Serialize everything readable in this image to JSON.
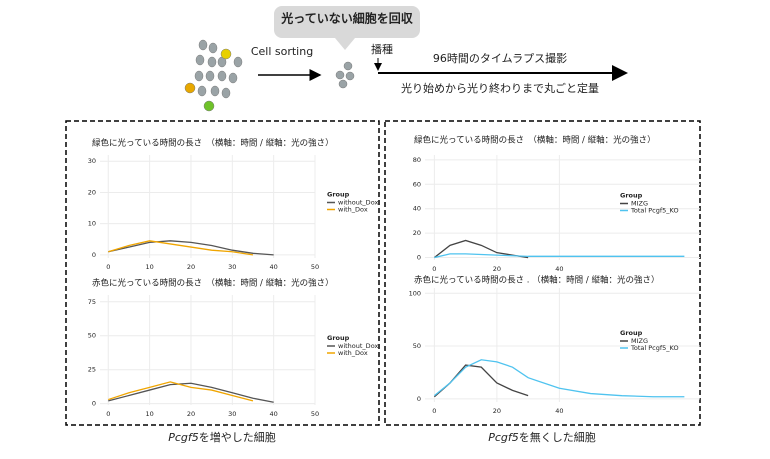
{
  "header": {
    "bubble": "光っていない細胞を回収",
    "sorting": "Cell sorting",
    "seeding": "播種",
    "timelapse": "96時間のタイムラプス撮影",
    "quantify": "光り始めから光り終わりまで丸ごと定量"
  },
  "captions": [
    {
      "gene": "Pcgf5",
      "text": "を増やした細胞"
    },
    {
      "gene": "Pcgf5",
      "text": "を無くした細胞"
    }
  ],
  "chart_data": [
    {
      "type": "line",
      "title": "緑色に光っている時間の長さ　（横軸：時間 / 縦軸：光の強さ）",
      "legend_title": "Group",
      "legend": "right",
      "grid": true,
      "x": [
        0,
        5,
        10,
        15,
        20,
        25,
        30,
        35,
        40
      ],
      "xlim": [
        -2,
        50
      ],
      "xticks": [
        0,
        10,
        20,
        30,
        40,
        50
      ],
      "ylim": [
        -1,
        32
      ],
      "yticks": [
        0,
        10,
        20,
        30
      ],
      "series": [
        {
          "name": "without_Dox",
          "color": "#555555",
          "values": [
            1,
            2.5,
            4,
            4.5,
            4,
            3,
            1.5,
            0.5,
            0
          ]
        },
        {
          "name": "with_Dox",
          "color": "#f0a500",
          "values": [
            1,
            3,
            4.5,
            3.5,
            2.5,
            1.5,
            1,
            0,
            null
          ]
        }
      ]
    },
    {
      "type": "line",
      "title": "赤色に光っている時間の長さ　（横軸：時間 / 縦軸：光の強さ）",
      "legend_title": "Group",
      "legend": "right",
      "grid": true,
      "x": [
        0,
        5,
        10,
        15,
        20,
        25,
        30,
        35,
        40
      ],
      "xlim": [
        -2,
        50
      ],
      "xticks": [
        0,
        10,
        20,
        30,
        40,
        50
      ],
      "ylim": [
        -1,
        80
      ],
      "yticks": [
        0,
        25,
        50,
        75
      ],
      "series": [
        {
          "name": "without_Dox",
          "color": "#555555",
          "values": [
            2,
            6,
            10,
            14,
            15,
            12,
            8,
            4,
            1
          ]
        },
        {
          "name": "with_Dox",
          "color": "#f0a500",
          "values": [
            3,
            8,
            12,
            16,
            12,
            10,
            6,
            2,
            null
          ]
        }
      ]
    },
    {
      "type": "line",
      "title": "緑色に光っている時間の長さ　（横軸：時間 / 縦軸：光の強さ）",
      "legend_title": "Group",
      "legend": "right",
      "grid": true,
      "x": [
        0,
        5,
        10,
        15,
        20,
        25,
        30,
        40,
        50,
        60,
        70,
        80
      ],
      "xlim": [
        -3,
        85
      ],
      "xticks": [
        0,
        20,
        40
      ],
      "ylim": [
        -2,
        84
      ],
      "yticks": [
        0,
        20,
        40,
        60,
        80
      ],
      "series": [
        {
          "name": "MIZG",
          "color": "#444444",
          "values": [
            0,
            10,
            14,
            10,
            4,
            2,
            0,
            null,
            null,
            null,
            null,
            null
          ]
        },
        {
          "name": "Total Pcgf5_KO",
          "color": "#4fc3ef",
          "values": [
            0,
            3,
            3,
            2.5,
            2,
            1.5,
            1,
            1,
            1,
            1,
            1,
            1
          ]
        }
      ]
    },
    {
      "type": "line",
      "title": "赤色に光っている時間の長さ . （横軸：時間 / 縦軸：光の強さ）",
      "legend_title": "Group",
      "legend": "right",
      "grid": true,
      "x": [
        0,
        5,
        10,
        15,
        20,
        25,
        30,
        40,
        50,
        60,
        70,
        80
      ],
      "xlim": [
        -3,
        85
      ],
      "xticks": [
        0,
        20,
        40
      ],
      "ylim": [
        -3,
        105
      ],
      "yticks": [
        0,
        50,
        100
      ],
      "series": [
        {
          "name": "MIZG",
          "color": "#444444",
          "values": [
            2,
            15,
            32,
            30,
            15,
            8,
            3,
            null,
            null,
            null,
            null,
            null
          ]
        },
        {
          "name": "Total Pcgf5_KO",
          "color": "#4fc3ef",
          "values": [
            3,
            15,
            30,
            37,
            35,
            30,
            20,
            10,
            5,
            3,
            2,
            2
          ]
        }
      ]
    }
  ]
}
